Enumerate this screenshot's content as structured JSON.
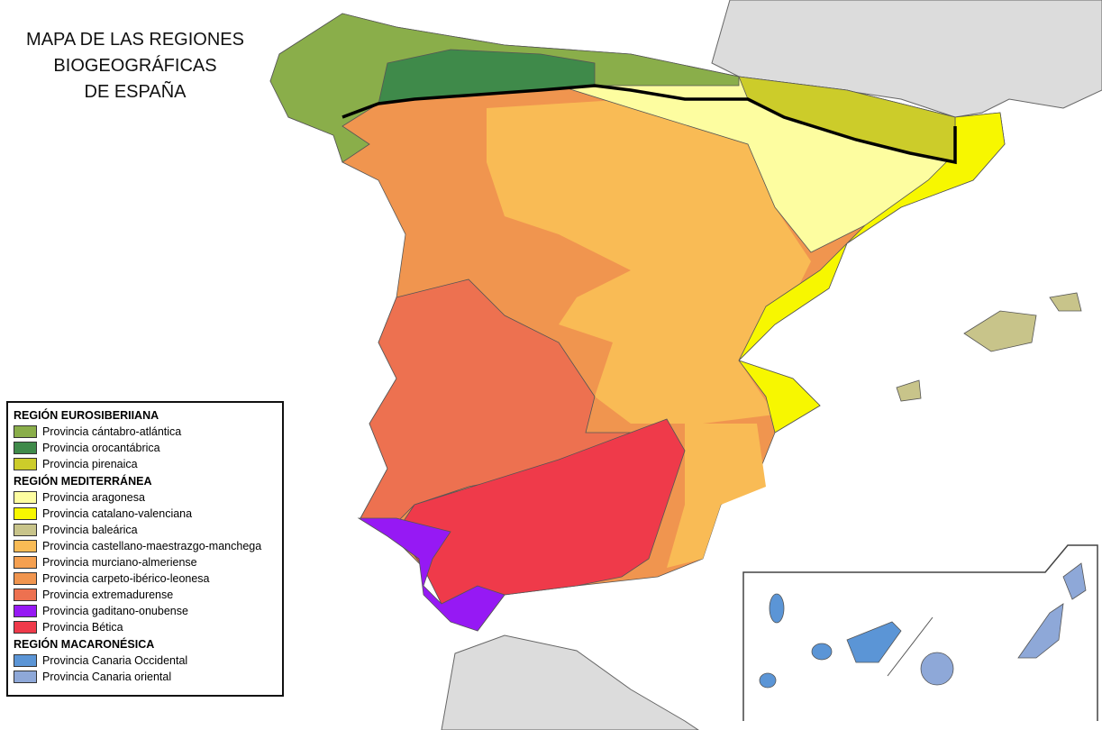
{
  "title": [
    "MAPA DE LAS REGIONES",
    "BIOGEOGRÁFICAS",
    "DE ESPAÑA"
  ],
  "legend": {
    "groups": [
      {
        "name": "REGIÓN EUROSIBERIIANA",
        "items": [
          {
            "label": "Provincia cántabro-atlántica",
            "color": "#8aae4a"
          },
          {
            "label": "Provincia orocantábrica",
            "color": "#3f8a4a"
          },
          {
            "label": "Provincia pirenaica",
            "color": "#cccc2a"
          }
        ]
      },
      {
        "name": "REGIÓN MEDITERRÁNEA",
        "items": [
          {
            "label": "Provincia aragonesa",
            "color": "#fdfda0"
          },
          {
            "label": "Provincia catalano-valenciana",
            "color": "#f7f700"
          },
          {
            "label": "Provincia baleárica",
            "color": "#c8c48a"
          },
          {
            "label": "Provincia castellano-maestrazgo-manchega",
            "color": "#f9bb55"
          },
          {
            "label": "Provincia murciano-almeriense",
            "color": "#f5a050"
          },
          {
            "label": "Provincia carpeto-ibérico-leonesa",
            "color": "#f0954f"
          },
          {
            "label": "Provincia extremadurense",
            "color": "#ed7150"
          },
          {
            "label": "Provincia gaditano-onubense",
            "color": "#9619f4"
          },
          {
            "label": "Provincia Bética",
            "color": "#ef3a4a"
          }
        ]
      },
      {
        "name": "REGIÓN MACARONÉSICA",
        "items": [
          {
            "label": "Provincia Canaria Occidental",
            "color": "#5b95d6"
          },
          {
            "label": "Provincia Canaria oriental",
            "color": "#8ea8d8"
          }
        ]
      }
    ]
  }
}
